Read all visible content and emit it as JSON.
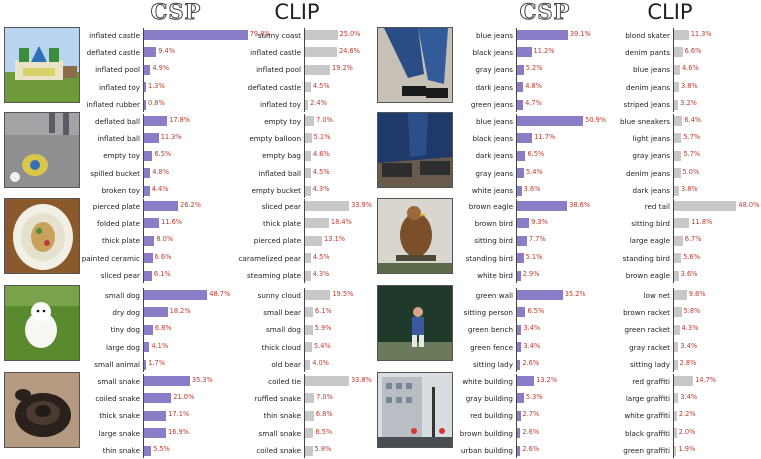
{
  "headers": {
    "csp": "CSP",
    "clip": "CLIP"
  },
  "colors": {
    "csp_bar": "#8b7cc8",
    "clip_bar": "#c8c8c8",
    "value_text": "#c0392b"
  },
  "images": [
    "bouncy-castle-photo",
    "ball-on-pavement-photo",
    "decorative-plate-photo",
    "white-dog-on-grass-photo",
    "coiled-snake-photo",
    "jeans-skater-photo",
    "jeans-shoes-photo",
    "eagle-on-perch-photo",
    "tennis-player-wall-photo",
    "building-street-photo"
  ],
  "chart_data": [
    {
      "type": "bar",
      "orientation": "horizontal",
      "model": "CSP",
      "image": "bouncy-castle-photo",
      "categories": [
        "inflated castle",
        "deflated castle",
        "inflated pool",
        "inflated toy",
        "inflated rubber"
      ],
      "values": [
        79.8,
        9.4,
        4.9,
        1.3,
        0.8
      ],
      "value_labels": [
        "79.8%",
        "9.4%",
        "4.9%",
        "1.3%",
        "0.8%"
      ]
    },
    {
      "type": "bar",
      "orientation": "horizontal",
      "model": "CLIP",
      "image": "bouncy-castle-photo",
      "categories": [
        "sunny coast",
        "inflated castle",
        "inflated pool",
        "deflated castle",
        "inflated toy"
      ],
      "values": [
        25.0,
        24.6,
        19.2,
        4.5,
        2.4
      ],
      "value_labels": [
        "25.0%",
        "24.6%",
        "19.2%",
        "4.5%",
        "2.4%"
      ]
    },
    {
      "type": "bar",
      "orientation": "horizontal",
      "model": "CSP",
      "image": "ball-on-pavement-photo",
      "categories": [
        "deflated ball",
        "inflated ball",
        "empty toy",
        "spilled bucket",
        "broken toy"
      ],
      "values": [
        17.8,
        11.3,
        6.5,
        4.8,
        4.4
      ],
      "value_labels": [
        "17.8%",
        "11.3%",
        "6.5%",
        "4.8%",
        "4.4%"
      ]
    },
    {
      "type": "bar",
      "orientation": "horizontal",
      "model": "CLIP",
      "image": "ball-on-pavement-photo",
      "categories": [
        "empty toy",
        "empty balloon",
        "empty bag",
        "inflated ball",
        "empty bucket"
      ],
      "values": [
        7.0,
        5.1,
        4.6,
        4.5,
        4.3
      ],
      "value_labels": [
        "7.0%",
        "5.1%",
        "4.6%",
        "4.5%",
        "4.3%"
      ]
    },
    {
      "type": "bar",
      "orientation": "horizontal",
      "model": "CSP",
      "image": "decorative-plate-photo",
      "categories": [
        "pierced plate",
        "folded plate",
        "thick plate",
        "painted ceramic",
        "sliced pear"
      ],
      "values": [
        26.2,
        11.6,
        8.0,
        6.6,
        6.1
      ],
      "value_labels": [
        "26.2%",
        "11.6%",
        "8.0%",
        "6.6%",
        "6.1%"
      ]
    },
    {
      "type": "bar",
      "orientation": "horizontal",
      "model": "CLIP",
      "image": "decorative-plate-photo",
      "categories": [
        "sliced pear",
        "thick plate",
        "pierced plate",
        "caramelized pear",
        "steaming plate"
      ],
      "values": [
        33.9,
        18.4,
        13.1,
        4.5,
        4.3
      ],
      "value_labels": [
        "33.9%",
        "18.4%",
        "13.1%",
        "4.5%",
        "4.3%"
      ]
    },
    {
      "type": "bar",
      "orientation": "horizontal",
      "model": "CSP",
      "image": "white-dog-on-grass-photo",
      "categories": [
        "small dog",
        "dry dog",
        "tiny dog",
        "large dog",
        "small animal"
      ],
      "values": [
        48.7,
        18.2,
        6.8,
        4.1,
        1.7
      ],
      "value_labels": [
        "48.7%",
        "18.2%",
        "6.8%",
        "4.1%",
        "1.7%"
      ]
    },
    {
      "type": "bar",
      "orientation": "horizontal",
      "model": "CLIP",
      "image": "white-dog-on-grass-photo",
      "categories": [
        "sunny cloud",
        "small bear",
        "small dog",
        "thick cloud",
        "old bear"
      ],
      "values": [
        19.5,
        6.1,
        5.9,
        5.4,
        4.0
      ],
      "value_labels": [
        "19.5%",
        "6.1%",
        "5.9%",
        "5.4%",
        "4.0%"
      ]
    },
    {
      "type": "bar",
      "orientation": "horizontal",
      "model": "CSP",
      "image": "coiled-snake-photo",
      "categories": [
        "small snake",
        "coiled snake",
        "thick snake",
        "large snake",
        "thin snake"
      ],
      "values": [
        35.3,
        21.0,
        17.1,
        16.9,
        5.5
      ],
      "value_labels": [
        "35.3%",
        "21.0%",
        "17.1%",
        "16.9%",
        "5.5%"
      ]
    },
    {
      "type": "bar",
      "orientation": "horizontal",
      "model": "CLIP",
      "image": "coiled-snake-photo",
      "categories": [
        "coiled tie",
        "ruffled snake",
        "thin snake",
        "small snake",
        "coiled snake"
      ],
      "values": [
        33.8,
        7.0,
        6.8,
        6.5,
        5.8
      ],
      "value_labels": [
        "33.8%",
        "7.0%",
        "6.8%",
        "6.5%",
        "5.8%"
      ]
    },
    {
      "type": "bar",
      "orientation": "horizontal",
      "model": "CSP",
      "image": "jeans-skater-photo",
      "categories": [
        "blue jeans",
        "black jeans",
        "gray jeans",
        "dark jeans",
        "green jeans"
      ],
      "values": [
        39.1,
        11.2,
        5.2,
        4.8,
        4.7
      ],
      "value_labels": [
        "39.1%",
        "11.2%",
        "5.2%",
        "4.8%",
        "4.7%"
      ]
    },
    {
      "type": "bar",
      "orientation": "horizontal",
      "model": "CLIP",
      "image": "jeans-skater-photo",
      "categories": [
        "blond skater",
        "denim pants",
        "blue jeans",
        "denim jeans",
        "striped jeans"
      ],
      "values": [
        11.3,
        6.6,
        4.6,
        3.8,
        3.2
      ],
      "value_labels": [
        "11.3%",
        "6.6%",
        "4.6%",
        "3.8%",
        "3.2%"
      ]
    },
    {
      "type": "bar",
      "orientation": "horizontal",
      "model": "CSP",
      "image": "jeans-shoes-photo",
      "categories": [
        "blue jeans",
        "black jeans",
        "dark jeans",
        "gray jeans",
        "white jeans"
      ],
      "values": [
        50.9,
        11.7,
        6.5,
        5.4,
        3.6
      ],
      "value_labels": [
        "50.9%",
        "11.7%",
        "6.5%",
        "5.4%",
        "3.6%"
      ]
    },
    {
      "type": "bar",
      "orientation": "horizontal",
      "model": "CLIP",
      "image": "jeans-shoes-photo",
      "categories": [
        "blue sneakers",
        "light jeans",
        "gray jeans",
        "denim jeans",
        "dark jeans"
      ],
      "values": [
        6.4,
        5.7,
        5.7,
        5.0,
        3.8
      ],
      "value_labels": [
        "6.4%",
        "5.7%",
        "5.7%",
        "5.0%",
        "3.8%"
      ]
    },
    {
      "type": "bar",
      "orientation": "horizontal",
      "model": "CSP",
      "image": "eagle-on-perch-photo",
      "categories": [
        "brown eagle",
        "brown bird",
        "sitting bird",
        "standing bird",
        "white bird"
      ],
      "values": [
        38.6,
        9.3,
        7.7,
        5.1,
        2.9
      ],
      "value_labels": [
        "38.6%",
        "9.3%",
        "7.7%",
        "5.1%",
        "2.9%"
      ]
    },
    {
      "type": "bar",
      "orientation": "horizontal",
      "model": "CLIP",
      "image": "eagle-on-perch-photo",
      "categories": [
        "red tail",
        "sitting bird",
        "large eagle",
        "standing bird",
        "brown eagle"
      ],
      "values": [
        48.0,
        11.8,
        6.7,
        5.6,
        3.6
      ],
      "value_labels": [
        "48.0%",
        "11.8%",
        "6.7%",
        "5.6%",
        "3.6%"
      ]
    },
    {
      "type": "bar",
      "orientation": "horizontal",
      "model": "CSP",
      "image": "tennis-player-wall-photo",
      "categories": [
        "green wall",
        "sitting person",
        "green bench",
        "green fence",
        "sitting lady"
      ],
      "values": [
        35.2,
        6.5,
        3.4,
        3.4,
        2.6
      ],
      "value_labels": [
        "35.2%",
        "6.5%",
        "3.4%",
        "3.4%",
        "2.6%"
      ]
    },
    {
      "type": "bar",
      "orientation": "horizontal",
      "model": "CLIP",
      "image": "tennis-player-wall-photo",
      "categories": [
        "low net",
        "brown racket",
        "green racket",
        "gray racket",
        "sitting lady"
      ],
      "values": [
        9.8,
        5.8,
        4.3,
        3.4,
        2.8
      ],
      "value_labels": [
        "9.8%",
        "5.8%",
        "4.3%",
        "3.4%",
        "2.8%"
      ]
    },
    {
      "type": "bar",
      "orientation": "horizontal",
      "model": "CSP",
      "image": "building-street-photo",
      "categories": [
        "white building",
        "gray building",
        "red building",
        "brown building",
        "urban building"
      ],
      "values": [
        13.2,
        5.3,
        2.7,
        2.6,
        2.6
      ],
      "value_labels": [
        "13.2%",
        "5.3%",
        "2.7%",
        "2.6%",
        "2.6%"
      ]
    },
    {
      "type": "bar",
      "orientation": "horizontal",
      "model": "CLIP",
      "image": "building-street-photo",
      "categories": [
        "red graffiti",
        "large graffiti",
        "white graffiti",
        "black graffiti",
        "green graffiti"
      ],
      "values": [
        14.7,
        3.4,
        2.2,
        2.0,
        1.9
      ],
      "value_labels": [
        "14.7%",
        "3.4%",
        "2.2%",
        "2.0%",
        "1.9%"
      ]
    }
  ]
}
